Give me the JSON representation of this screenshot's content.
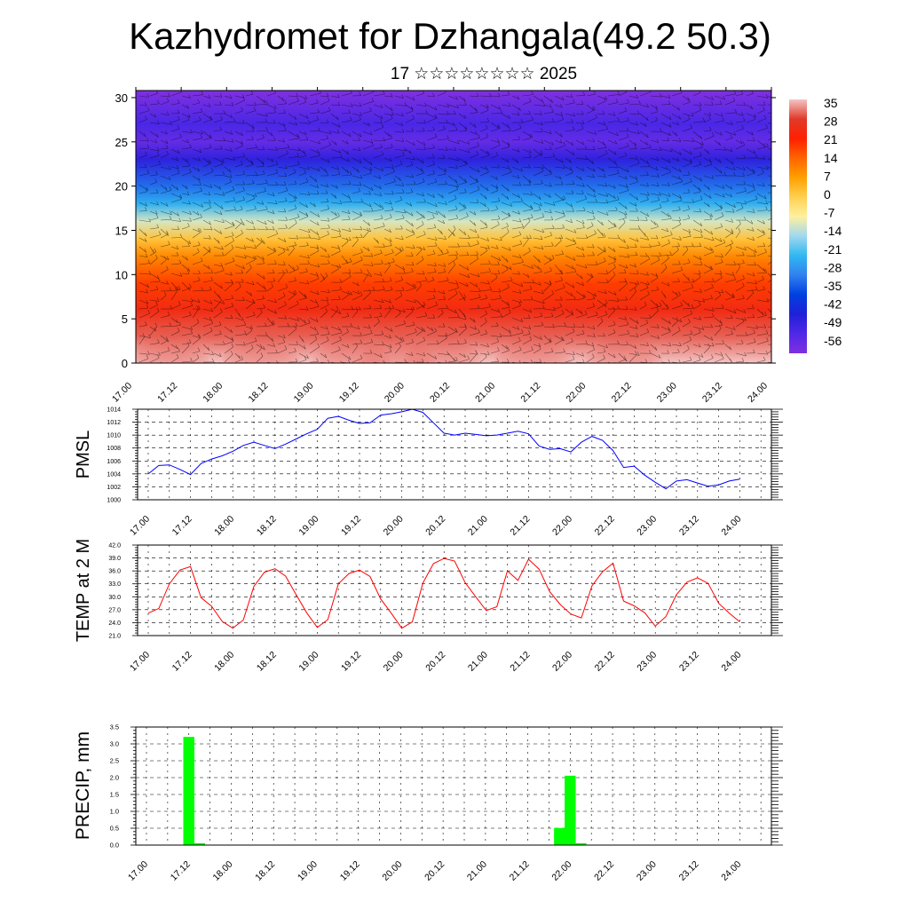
{
  "title": "Kazhydromet for Dzhangala(49.2 50.3)",
  "subtitle": "17 ☆☆☆☆☆☆☆☆ 2025",
  "time_ticks": [
    "17.00",
    "17.12",
    "18.00",
    "18.12",
    "19.00",
    "19.12",
    "20.00",
    "20.12",
    "21.00",
    "21.12",
    "22.00",
    "22.12",
    "23.00",
    "23.12",
    "24.00"
  ],
  "colors": {
    "pmsl": "#0000ff",
    "temp": "#ff0000",
    "precip": "#00ff00",
    "grid": "#000000"
  },
  "chart_data": [
    {
      "type": "heatmap",
      "title": "",
      "xlabel": "",
      "ylabel": "",
      "x_tick_labels": [
        "17.00",
        "17.12",
        "18.00",
        "18.12",
        "19.00",
        "19.12",
        "20.00",
        "20.12",
        "21.00",
        "21.12",
        "22.00",
        "22.12",
        "23.00",
        "23.12",
        "24.00"
      ],
      "y_ticks": [
        0,
        5,
        10,
        15,
        20,
        25,
        30
      ],
      "ylim": [
        0,
        30.8
      ],
      "xlim": [
        0,
        168
      ],
      "colorbar_labels": [
        "35",
        "28",
        "21",
        "14",
        "7",
        "0",
        "-7",
        "-14",
        "-21",
        "-28",
        "-35",
        "-42",
        "-49",
        "-56"
      ],
      "colorbar_colors": [
        "#f4c4c4",
        "#e03a2a",
        "#ff2000",
        "#ff6400",
        "#ffa000",
        "#ffd050",
        "#fff0a0",
        "#a0d8f0",
        "#30b8f0",
        "#3080f0",
        "#0040e0",
        "#2020d8",
        "#5028e8",
        "#8030e0"
      ],
      "temperature_profile": [
        {
          "height": 0,
          "temp": 35
        },
        {
          "height": 3,
          "temp": 30
        },
        {
          "height": 6,
          "temp": 24
        },
        {
          "height": 9,
          "temp": 18
        },
        {
          "height": 12,
          "temp": 10
        },
        {
          "height": 14,
          "temp": 2
        },
        {
          "height": 16,
          "temp": -10
        },
        {
          "height": 18,
          "temp": -22
        },
        {
          "height": 20,
          "temp": -30
        },
        {
          "height": 23,
          "temp": -44
        },
        {
          "height": 25,
          "temp": -52
        },
        {
          "height": 27,
          "temp": -48
        },
        {
          "height": 31,
          "temp": -56
        }
      ],
      "warm_cores_hours": [
        9,
        33,
        57,
        69,
        81,
        105,
        129
      ]
    },
    {
      "type": "line",
      "ylabel": "PMSL",
      "ylim": [
        1000,
        1014
      ],
      "y_ticks": [
        "1000",
        "1002",
        "1004",
        "1006",
        "1008",
        "1010",
        "1012",
        "1014"
      ],
      "x_tick_labels": [
        "17.00",
        "17.12",
        "18.00",
        "18.12",
        "19.00",
        "19.12",
        "20.00",
        "20.12",
        "21.00",
        "21.12",
        "22.00",
        "22.12",
        "23.00",
        "23.12",
        "24.00"
      ],
      "series": [
        {
          "x": [
            0,
            3,
            6,
            9,
            12,
            15,
            18,
            21,
            24,
            27,
            30,
            33,
            36,
            39,
            42,
            45,
            48,
            51,
            54,
            57,
            60,
            63,
            66,
            69,
            72,
            75,
            78,
            81,
            84,
            87,
            90,
            93,
            96,
            99,
            102,
            105,
            108,
            111,
            114,
            117,
            120,
            123,
            126,
            129,
            132,
            135,
            138,
            141,
            144,
            147,
            150,
            153,
            156,
            159,
            162,
            165,
            168
          ],
          "values": [
            1004,
            1005.3,
            1005.4,
            1004.7,
            1003.9,
            1005.6,
            1006.3,
            1006.8,
            1007.5,
            1008.4,
            1008.9,
            1008.4,
            1007.9,
            1008.6,
            1009.4,
            1010.2,
            1010.9,
            1012.6,
            1012.9,
            1012.3,
            1011.8,
            1011.9,
            1013.1,
            1013.3,
            1013.6,
            1014,
            1013.5,
            1011.9,
            1010.3,
            1010,
            1010.3,
            1010.1,
            1009.9,
            1010,
            1010.3,
            1010.6,
            1010.2,
            1008.3,
            1007.8,
            1007.9,
            1007.4,
            1008.9,
            1009.8,
            1009.2,
            1007.6,
            1005,
            1005.2,
            1003.8,
            1002.7,
            1001.7,
            1002.9,
            1003.1,
            1002.6,
            1002.1,
            1002.3,
            1002.9,
            1003.2
          ]
        }
      ]
    },
    {
      "type": "line",
      "ylabel": "TEMP at 2 M",
      "ylim": [
        21,
        42
      ],
      "y_ticks": [
        "21.0",
        "24.0",
        "27.0",
        "30.0",
        "33.0",
        "36.0",
        "39.0",
        "42.0"
      ],
      "x_tick_labels": [
        "17.00",
        "17.12",
        "18.00",
        "18.12",
        "19.00",
        "19.12",
        "20.00",
        "20.12",
        "21.00",
        "21.12",
        "22.00",
        "22.12",
        "23.00",
        "23.12",
        "24.00"
      ],
      "series": [
        {
          "x": [
            0,
            3,
            6,
            9,
            12,
            15,
            18,
            21,
            24,
            27,
            30,
            33,
            36,
            39,
            42,
            45,
            48,
            51,
            54,
            57,
            60,
            63,
            66,
            69,
            72,
            75,
            78,
            81,
            84,
            87,
            90,
            93,
            96,
            99,
            102,
            105,
            108,
            111,
            114,
            117,
            120,
            123,
            126,
            129,
            132,
            135,
            138,
            141,
            144,
            147,
            150,
            153,
            156,
            159,
            162,
            165,
            168
          ],
          "values": [
            26.2,
            27.3,
            33,
            36.2,
            37,
            29.8,
            27.8,
            24.3,
            22.7,
            24.6,
            32.4,
            35.7,
            36.5,
            34.8,
            30.5,
            26.3,
            22.9,
            24.7,
            33,
            35.4,
            36.2,
            34.7,
            29.5,
            26.2,
            22.7,
            24.2,
            33.2,
            37.7,
            38.9,
            38.3,
            33.3,
            30,
            26.8,
            27.7,
            36,
            33.8,
            38.7,
            36.4,
            31.2,
            28.2,
            26,
            25.1,
            32.5,
            35.8,
            37.8,
            29,
            27.9,
            26.3,
            23.2,
            25.4,
            30.5,
            33.4,
            34.4,
            33.1,
            28.5,
            26.2,
            24.2
          ]
        }
      ]
    },
    {
      "type": "bar",
      "ylabel": "PRECIP, mm",
      "ylim": [
        0,
        3.5
      ],
      "y_ticks": [
        "0.0",
        "0.5",
        "1.0",
        "1.5",
        "2.0",
        "2.5",
        "3.0",
        "3.5"
      ],
      "x_tick_labels": [
        "17.00",
        "17.12",
        "18.00",
        "18.12",
        "19.00",
        "19.12",
        "20.00",
        "20.12",
        "21.00",
        "21.12",
        "22.00",
        "22.12",
        "23.00",
        "23.12",
        "24.00"
      ],
      "bars": [
        {
          "x": 12,
          "value": 3.2
        },
        {
          "x": 15,
          "value": 0.05
        },
        {
          "x": 117,
          "value": 0.5
        },
        {
          "x": 120,
          "value": 2.05
        },
        {
          "x": 123,
          "value": 0.05
        }
      ]
    }
  ]
}
